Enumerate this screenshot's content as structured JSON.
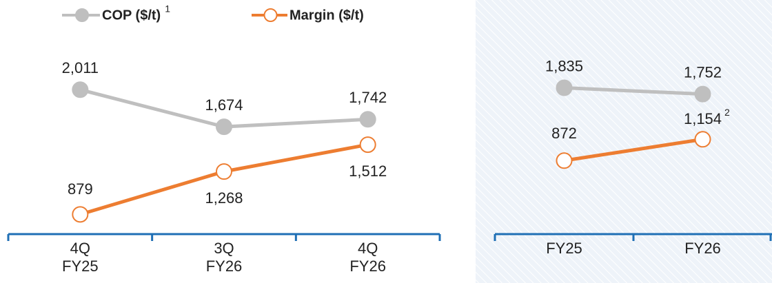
{
  "chart_data": [
    {
      "type": "line",
      "categories": [
        [
          "4Q",
          "FY25"
        ],
        [
          "3Q",
          "FY26"
        ],
        [
          "4Q",
          "FY26"
        ]
      ],
      "series": [
        {
          "name": "COP ($/t)",
          "footnote": "1",
          "color": "#bfbfbf",
          "marker": "filled",
          "values": [
            2011,
            1674,
            1742
          ],
          "value_labels": [
            "2,011",
            "1,674",
            "1,742"
          ]
        },
        {
          "name": "Margin ($/t)",
          "color": "#ed7d31",
          "marker": "hollow",
          "values": [
            879,
            1268,
            1512
          ],
          "value_labels": [
            "879",
            "1,268",
            "1,512"
          ]
        }
      ],
      "ylim": [
        700,
        2450
      ],
      "legend": "top"
    },
    {
      "type": "line",
      "categories": [
        [
          "FY25"
        ],
        [
          "FY26"
        ]
      ],
      "series": [
        {
          "name": "COP ($/t)",
          "color": "#bfbfbf",
          "marker": "filled",
          "values": [
            1835,
            1752
          ],
          "value_labels": [
            "1,835",
            "1,752"
          ]
        },
        {
          "name": "Margin ($/t)",
          "color": "#ed7d31",
          "marker": "hollow",
          "values": [
            872,
            1154
          ],
          "value_labels": [
            "872",
            "1,154"
          ],
          "value_footnotes": [
            null,
            "2"
          ]
        }
      ],
      "ylim": [
        -100,
        2450
      ]
    }
  ]
}
